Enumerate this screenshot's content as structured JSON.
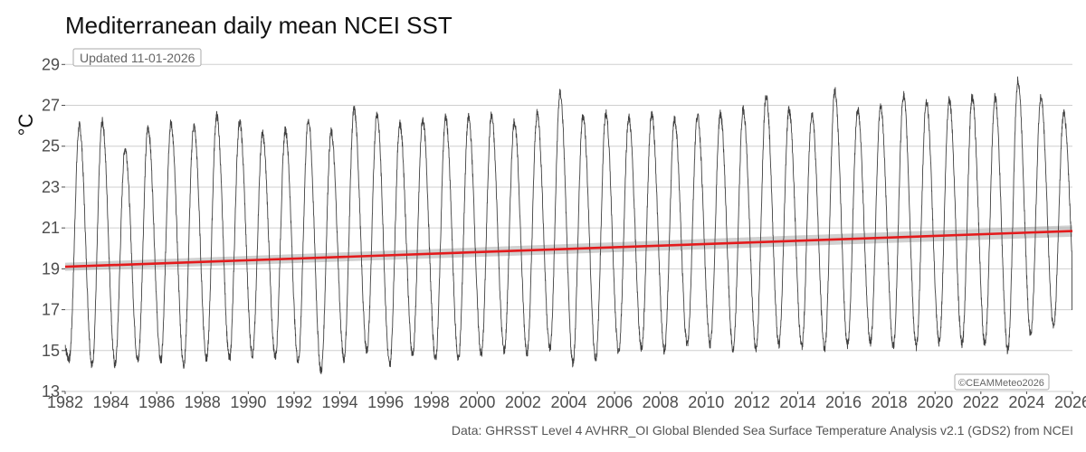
{
  "chart_data": {
    "type": "line",
    "title": "Mediterranean daily mean NCEI SST",
    "ylabel": "°C",
    "xlabel": "",
    "xlim": [
      1982,
      2026
    ],
    "ylim": [
      13,
      29.5
    ],
    "x_ticks": [
      "1982",
      "1984",
      "1986",
      "1988",
      "1990",
      "1992",
      "1994",
      "1996",
      "1998",
      "2000",
      "2002",
      "2004",
      "2006",
      "2008",
      "2010",
      "2012",
      "2014",
      "2016",
      "2018",
      "2020",
      "2022",
      "2024",
      "2026"
    ],
    "y_ticks": [
      "13",
      "15",
      "17",
      "19",
      "21",
      "23",
      "25",
      "27",
      "29"
    ],
    "updated_badge": "Updated 11-01-2026",
    "credit": "©CEAMMeteo2026",
    "source": "Data: GHRSST Level 4 AVHRR_OI Global Blended Sea Surface Temperature Analysis v2.1 (GDS2) from NCEI",
    "series": [
      {
        "name": "Daily mean SST",
        "color": "#404040",
        "annual_peaks": [
          26.0,
          26.2,
          24.9,
          25.9,
          26.1,
          26.0,
          26.5,
          26.2,
          25.6,
          25.8,
          26.3,
          25.7,
          26.8,
          26.6,
          26.1,
          26.3,
          26.4,
          26.4,
          26.5,
          26.2,
          26.6,
          27.6,
          26.5,
          26.6,
          26.4,
          26.6,
          26.3,
          26.5,
          26.6,
          26.8,
          27.5,
          26.8,
          26.6,
          27.7,
          26.8,
          26.9,
          27.5,
          27.2,
          27.3,
          27.4,
          27.4,
          28.2,
          27.4,
          26.6
        ],
        "annual_minima": [
          14.6,
          14.3,
          14.3,
          14.5,
          14.5,
          14.3,
          14.6,
          14.6,
          14.8,
          14.7,
          14.5,
          14.0,
          14.6,
          15.0,
          14.3,
          14.8,
          14.6,
          14.6,
          14.8,
          15.0,
          14.9,
          15.1,
          14.4,
          14.6,
          14.9,
          15.1,
          15.0,
          15.3,
          15.3,
          15.0,
          15.1,
          15.3,
          15.2,
          15.1,
          15.3,
          15.4,
          15.2,
          15.2,
          15.4,
          15.3,
          15.3,
          15.0,
          15.8,
          16.2
        ],
        "end_value": 17.0
      },
      {
        "name": "Linear trend",
        "color": "#e41a1c",
        "x": [
          1982,
          2026
        ],
        "y": [
          19.1,
          20.85
        ],
        "ci_halfwidth": [
          0.2,
          0.28
        ]
      }
    ]
  }
}
